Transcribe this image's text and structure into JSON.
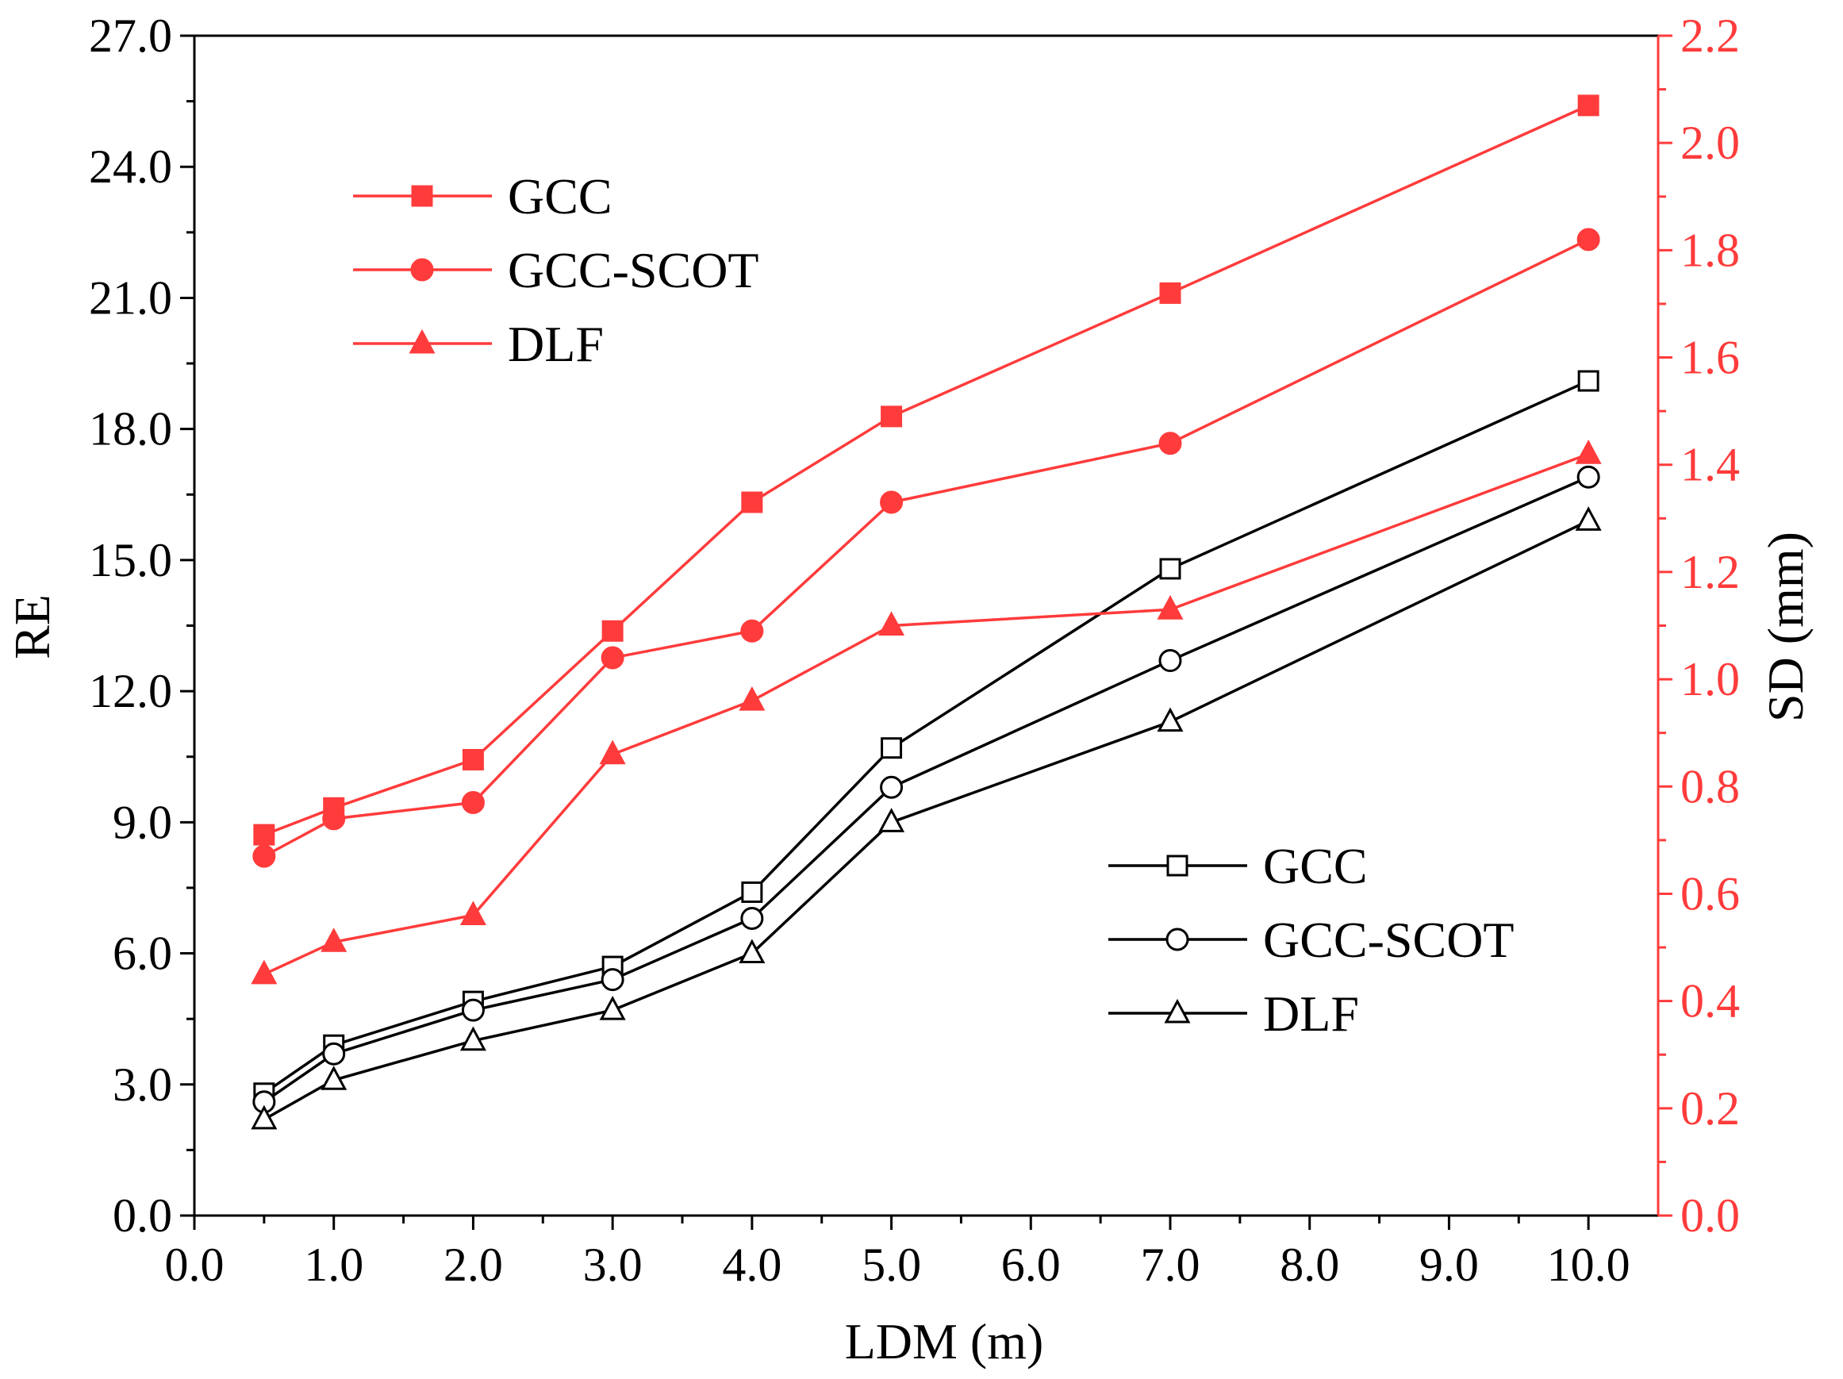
{
  "colors": {
    "left": "#000000",
    "right": "#ff3b3b",
    "background": "#ffffff"
  },
  "chart_data": {
    "type": "line",
    "x_label": "LDM (m)",
    "y_left_label": "RE",
    "y_right_label": "SD (mm)",
    "xlim": [
      0,
      10.5
    ],
    "ylim_left": [
      0,
      27
    ],
    "ylim_right": [
      0,
      2.2
    ],
    "x_ticks": [
      0,
      1,
      2,
      3,
      4,
      5,
      6,
      7,
      8,
      9,
      10
    ],
    "x_tick_labels": [
      "0.0",
      "1.0",
      "2.0",
      "3.0",
      "4.0",
      "5.0",
      "6.0",
      "7.0",
      "8.0",
      "9.0",
      "10.0"
    ],
    "y_left_ticks": [
      0,
      3,
      6,
      9,
      12,
      15,
      18,
      21,
      24,
      27
    ],
    "y_left_tick_labels": [
      "0.0",
      "3.0",
      "6.0",
      "9.0",
      "12.0",
      "15.0",
      "18.0",
      "21.0",
      "24.0",
      "27.0"
    ],
    "y_right_ticks": [
      0,
      0.2,
      0.4,
      0.6,
      0.8,
      1.0,
      1.2,
      1.4,
      1.6,
      1.8,
      2.0,
      2.2
    ],
    "y_right_tick_labels": [
      "0.0",
      "0.2",
      "0.4",
      "0.6",
      "0.8",
      "1.0",
      "1.2",
      "1.4",
      "1.6",
      "1.8",
      "2.0",
      "2.2"
    ],
    "x": [
      0.5,
      1,
      2,
      3,
      4,
      5,
      7,
      10
    ],
    "series": [
      {
        "name": "GCC",
        "axis": "left",
        "marker": "square-open",
        "values": [
          2.8,
          3.9,
          4.9,
          5.7,
          7.4,
          10.7,
          14.8,
          19.1
        ]
      },
      {
        "name": "GCC-SCOT",
        "axis": "left",
        "marker": "circle-open",
        "values": [
          2.6,
          3.7,
          4.7,
          5.4,
          6.8,
          9.8,
          12.7,
          16.9
        ]
      },
      {
        "name": "DLF",
        "axis": "left",
        "marker": "triangle-open",
        "values": [
          2.2,
          3.1,
          4.0,
          4.7,
          6.0,
          9.0,
          11.3,
          15.9
        ]
      },
      {
        "name": "GCC",
        "axis": "right",
        "marker": "square-filled",
        "values": [
          0.71,
          0.76,
          0.85,
          1.09,
          1.33,
          1.49,
          1.72,
          2.07
        ]
      },
      {
        "name": "GCC-SCOT",
        "axis": "right",
        "marker": "circle-filled",
        "values": [
          0.67,
          0.74,
          0.77,
          1.04,
          1.09,
          1.33,
          1.44,
          1.82
        ]
      },
      {
        "name": "DLF",
        "axis": "right",
        "marker": "triangle-filled",
        "values": [
          0.45,
          0.51,
          0.56,
          0.86,
          0.96,
          1.1,
          1.13,
          1.42
        ]
      }
    ],
    "legends": [
      {
        "axis": "right",
        "placement": "top-left",
        "entries": [
          "GCC",
          "GCC-SCOT",
          "DLF"
        ]
      },
      {
        "axis": "left",
        "placement": "bottom-right",
        "entries": [
          "GCC",
          "GCC-SCOT",
          "DLF"
        ]
      }
    ]
  }
}
